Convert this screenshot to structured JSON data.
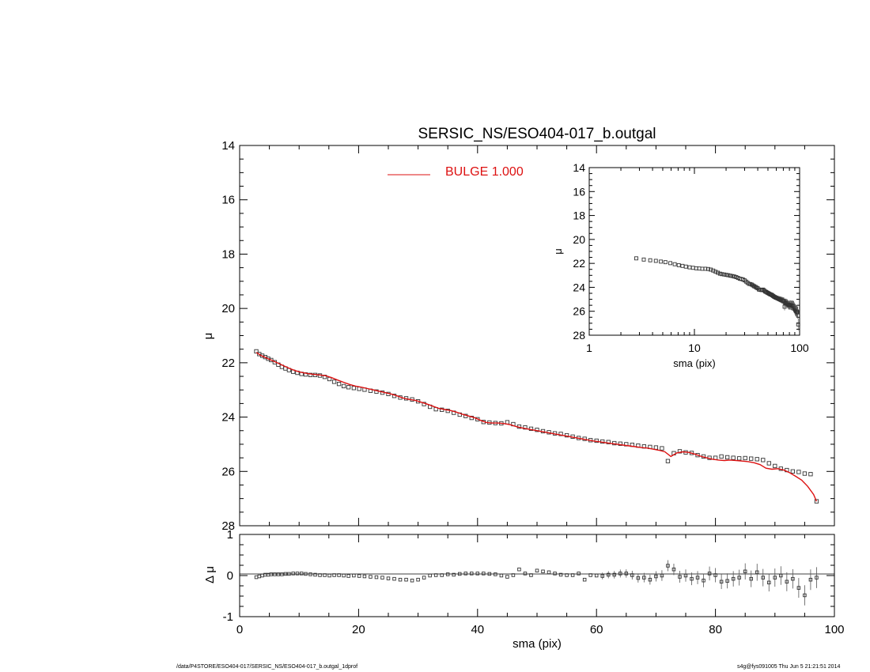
{
  "chart_data": [
    {
      "type": "scatter",
      "panel": "main",
      "title": "SERSIC_NS/ESO404-017_b.outgal",
      "xlabel": "",
      "ylabel": "μ",
      "xlim": [
        0,
        100
      ],
      "ylim": [
        28,
        14
      ],
      "y_inverted": true,
      "yticks": [
        "14",
        "16",
        "18",
        "20",
        "22",
        "24",
        "26",
        "28"
      ],
      "legend": {
        "position": "top-center",
        "label": "BULGE  1.000",
        "color": "#dd1111"
      },
      "series": [
        {
          "kind": "data-points",
          "marker": "open-square",
          "color": "#333333",
          "x": [
            2.8,
            3.3,
            3.8,
            4.3,
            4.8,
            5.3,
            5.9,
            6.5,
            7.1,
            7.7,
            8.3,
            9.0,
            9.7,
            10.4,
            11.1,
            11.9,
            12.7,
            13.5,
            14.3,
            15.1,
            15.9,
            16.7,
            17.5,
            18.3,
            19.2,
            20.1,
            21.0,
            22.0,
            23.0,
            24.0,
            25.0,
            26.0,
            27.0,
            28.0,
            29.0,
            30.0,
            31.0,
            32.0,
            33.0,
            34.0,
            35.0,
            36.0,
            37.0,
            38.0,
            39.0,
            40.0,
            41.0,
            42.0,
            43.0,
            44.0,
            45.0,
            46.0,
            47.0,
            48.0,
            49.0,
            50.0,
            51.0,
            52.0,
            53.0,
            54.0,
            55.0,
            56.0,
            57.0,
            58.0,
            59.0,
            60.0,
            61.0,
            62.0,
            63.0,
            64.0,
            65.0,
            66.0,
            67.0,
            68.0,
            69.0,
            70.0,
            71.0,
            72.0,
            73.0,
            74.0,
            75.0,
            76.0,
            77.0,
            78.0,
            79.0,
            80.0,
            81.0,
            82.0,
            83.0,
            84.0,
            85.0,
            86.0,
            87.0,
            88.0,
            89.0,
            90.0,
            91.0,
            92.0,
            93.0,
            94.0,
            95.0,
            96.0,
            97.0
          ],
          "y": [
            21.58,
            21.68,
            21.74,
            21.79,
            21.85,
            21.9,
            21.98,
            22.07,
            22.15,
            22.21,
            22.27,
            22.33,
            22.37,
            22.41,
            22.43,
            22.45,
            22.45,
            22.47,
            22.52,
            22.6,
            22.7,
            22.78,
            22.86,
            22.9,
            22.93,
            22.96,
            22.99,
            23.03,
            23.06,
            23.1,
            23.15,
            23.22,
            23.28,
            23.31,
            23.35,
            23.42,
            23.52,
            23.62,
            23.71,
            23.73,
            23.77,
            23.84,
            23.91,
            23.96,
            24.03,
            24.08,
            24.18,
            24.2,
            24.22,
            24.23,
            24.19,
            24.26,
            24.35,
            24.38,
            24.43,
            24.47,
            24.52,
            24.56,
            24.6,
            24.62,
            24.67,
            24.72,
            24.77,
            24.8,
            24.85,
            24.87,
            24.9,
            24.92,
            24.96,
            24.98,
            25.0,
            25.02,
            25.05,
            25.08,
            25.1,
            25.12,
            25.15,
            25.62,
            25.33,
            25.26,
            25.3,
            25.32,
            25.4,
            25.45,
            25.5,
            25.5,
            25.45,
            25.48,
            25.5,
            25.52,
            25.51,
            25.53,
            25.55,
            25.58,
            25.7,
            25.8,
            25.9,
            25.95,
            26.0,
            26.02,
            26.08,
            26.1,
            27.1
          ]
        },
        {
          "name": "BULGE  1.000",
          "kind": "model-line",
          "color": "#dd1111",
          "x": [
            2.8,
            3.5,
            4.5,
            5.5,
            6.5,
            7.5,
            8.5,
            9.5,
            10.5,
            11.5,
            12.5,
            13.5,
            14.5,
            15.5,
            16.5,
            17.5,
            18.5,
            19.5,
            20.5,
            21.5,
            22.5,
            23.5,
            24.5,
            25.5,
            26.5,
            27.5,
            28.5,
            29.5,
            30.5,
            31.5,
            32.5,
            33.5,
            34.5,
            35.5,
            36.5,
            37.5,
            38.5,
            39.5,
            40.5,
            41.5,
            42.5,
            43.5,
            44.5,
            45.5,
            46.5,
            47.5,
            48.5,
            49.5,
            50.5,
            51.5,
            52.5,
            53.5,
            54.5,
            55.5,
            56.5,
            57.5,
            58.5,
            59.5,
            60.5,
            61.5,
            62.5,
            63.5,
            64.5,
            65.5,
            66.5,
            67.5,
            68.5,
            69.5,
            70.5,
            71.5,
            72.5,
            73.5,
            74.5,
            75.5,
            76.5,
            77.5,
            78.5,
            79.5,
            80.5,
            81.5,
            82.5,
            83.5,
            84.5,
            85.5,
            86.5,
            87.5,
            88.5,
            89.5,
            90.5,
            91.5,
            92.5,
            93.5,
            94.5,
            95.5,
            96.5,
            97.0
          ],
          "y": [
            21.62,
            21.72,
            21.82,
            21.92,
            22.02,
            22.12,
            22.22,
            22.3,
            22.36,
            22.4,
            22.43,
            22.45,
            22.48,
            22.55,
            22.64,
            22.72,
            22.8,
            22.86,
            22.9,
            22.95,
            23.0,
            23.05,
            23.1,
            23.15,
            23.22,
            23.3,
            23.35,
            23.38,
            23.45,
            23.52,
            23.6,
            23.68,
            23.72,
            23.76,
            23.82,
            23.9,
            23.96,
            24.02,
            24.12,
            24.2,
            24.22,
            24.22,
            24.24,
            24.28,
            24.35,
            24.4,
            24.44,
            24.48,
            24.52,
            24.56,
            24.6,
            24.64,
            24.68,
            24.72,
            24.76,
            24.8,
            24.84,
            24.88,
            24.91,
            24.94,
            24.97,
            25.0,
            25.03,
            25.06,
            25.09,
            25.12,
            25.14,
            25.18,
            25.22,
            25.28,
            25.45,
            25.32,
            25.28,
            25.3,
            25.36,
            25.44,
            25.5,
            25.55,
            25.58,
            25.6,
            25.58,
            25.6,
            25.62,
            25.64,
            25.68,
            25.75,
            25.88,
            25.92,
            25.9,
            25.95,
            26.05,
            26.18,
            26.32,
            26.55,
            26.85,
            27.1
          ]
        }
      ]
    },
    {
      "type": "scatter",
      "panel": "residual",
      "xlabel": "sma (pix)",
      "ylabel": "Δ μ",
      "xlim": [
        0,
        100
      ],
      "ylim": [
        -1,
        1
      ],
      "xticks": [
        "0",
        "20",
        "40",
        "60",
        "80",
        "100"
      ],
      "yticks": [
        "1",
        "0",
        "-1"
      ],
      "zero_line": true,
      "series": [
        {
          "kind": "residual-points",
          "marker": "open-square",
          "color": "#333333",
          "x": [
            2.8,
            3.3,
            3.8,
            4.3,
            4.8,
            5.3,
            5.9,
            6.5,
            7.1,
            7.7,
            8.3,
            9.0,
            9.7,
            10.4,
            11.1,
            11.9,
            12.7,
            13.5,
            14.3,
            15.1,
            15.9,
            16.7,
            17.5,
            18.3,
            19.2,
            20.1,
            21.0,
            22.0,
            23.0,
            24.0,
            25.0,
            26.0,
            27.0,
            28.0,
            29.0,
            30.0,
            31.0,
            32.0,
            33.0,
            34.0,
            35.0,
            36.0,
            37.0,
            38.0,
            39.0,
            40.0,
            41.0,
            42.0,
            43.0,
            44.0,
            45.0,
            46.0,
            47.0,
            48.0,
            49.0,
            50.0,
            51.0,
            52.0,
            53.0,
            54.0,
            55.0,
            56.0,
            57.0,
            58.0,
            59.0,
            60.0,
            61.0,
            62.0,
            63.0,
            64.0,
            65.0,
            66.0,
            67.0,
            68.0,
            69.0,
            70.0,
            71.0,
            72.0,
            73.0,
            74.0,
            75.0,
            76.0,
            77.0,
            78.0,
            79.0,
            80.0,
            81.0,
            82.0,
            83.0,
            84.0,
            85.0,
            86.0,
            87.0,
            88.0,
            89.0,
            90.0,
            91.0,
            92.0,
            93.0,
            94.0,
            95.0,
            96.0,
            97.0
          ],
          "y": [
            -0.04,
            -0.02,
            0.0,
            0.02,
            0.02,
            0.03,
            0.03,
            0.03,
            0.03,
            0.04,
            0.04,
            0.05,
            0.05,
            0.05,
            0.04,
            0.03,
            0.02,
            0.01,
            0.01,
            0.0,
            0.01,
            0.01,
            0.0,
            -0.01,
            0.0,
            -0.01,
            -0.02,
            -0.03,
            -0.04,
            -0.05,
            -0.07,
            -0.08,
            -0.1,
            -0.1,
            -0.12,
            -0.1,
            -0.05,
            0.0,
            0.01,
            0.01,
            0.03,
            0.02,
            0.04,
            0.05,
            0.05,
            0.05,
            0.05,
            0.04,
            0.03,
            0.0,
            -0.03,
            0.01,
            0.15,
            0.05,
            0.01,
            0.12,
            0.1,
            0.08,
            0.05,
            0.02,
            0.01,
            0.01,
            0.05,
            -0.1,
            0.01,
            0.0,
            -0.01,
            0.02,
            0.02,
            0.05,
            0.05,
            0.01,
            -0.06,
            -0.05,
            -0.1,
            -0.02,
            0.0,
            0.24,
            0.15,
            -0.03,
            0.0,
            -0.08,
            -0.05,
            -0.12,
            0.05,
            0.01,
            -0.15,
            -0.13,
            -0.08,
            -0.05,
            0.1,
            -0.08,
            0.08,
            -0.05,
            -0.17,
            -0.05,
            0.0,
            -0.15,
            -0.08,
            -0.3,
            -0.48,
            -0.1,
            -0.05
          ]
        }
      ]
    },
    {
      "type": "scatter",
      "panel": "inset",
      "xlabel": "sma (pix)",
      "ylabel": "μ",
      "x_scale": "log",
      "xlim": [
        1,
        100
      ],
      "ylim": [
        28,
        14
      ],
      "y_inverted": true,
      "xticks": [
        "1",
        "10",
        "100"
      ],
      "yticks": [
        "14",
        "16",
        "18",
        "20",
        "22",
        "24",
        "26",
        "28"
      ],
      "series": [
        {
          "kind": "data-points",
          "marker": "open-square",
          "color": "#333333",
          "x": [
            2.8,
            3.3,
            3.8,
            4.3,
            4.8,
            5.3,
            5.9,
            6.5,
            7.1,
            7.7,
            8.3,
            9.0,
            9.7,
            10.4,
            11.1,
            11.9,
            12.7,
            13.5,
            14.3,
            15.1,
            15.9,
            16.7,
            17.5,
            18.3,
            19.2,
            20.1,
            21.0,
            22.0,
            23.0,
            24.0,
            25.0,
            26.0,
            27.0,
            28.0,
            29.0,
            30.0,
            31.0,
            32.0,
            33.0,
            34.0,
            35.0,
            36.0,
            37.0,
            38.0,
            39.0,
            40.0,
            41.0,
            42.0,
            43.0,
            44.0,
            45.0,
            46.0,
            47.0,
            48.0,
            49.0,
            50.0,
            51.0,
            52.0,
            53.0,
            54.0,
            55.0,
            56.0,
            57.0,
            58.0,
            59.0,
            60.0,
            61.0,
            62.0,
            63.0,
            64.0,
            65.0,
            66.0,
            67.0,
            68.0,
            69.0,
            70.0,
            71.0,
            72.0,
            73.0,
            74.0,
            75.0,
            76.0,
            77.0,
            78.0,
            79.0,
            80.0,
            81.0,
            82.0,
            83.0,
            84.0,
            85.0,
            86.0,
            87.0,
            88.0,
            89.0,
            90.0,
            91.0,
            92.0,
            93.0,
            94.0,
            95.0,
            96.0,
            97.0
          ],
          "y": [
            21.58,
            21.68,
            21.74,
            21.79,
            21.85,
            21.9,
            21.98,
            22.07,
            22.15,
            22.21,
            22.27,
            22.33,
            22.37,
            22.41,
            22.43,
            22.45,
            22.45,
            22.47,
            22.52,
            22.6,
            22.7,
            22.78,
            22.86,
            22.9,
            22.93,
            22.96,
            22.99,
            23.03,
            23.06,
            23.1,
            23.15,
            23.22,
            23.28,
            23.31,
            23.35,
            23.42,
            23.52,
            23.62,
            23.71,
            23.73,
            23.77,
            23.84,
            23.91,
            23.96,
            24.03,
            24.08,
            24.18,
            24.2,
            24.22,
            24.23,
            24.19,
            24.26,
            24.35,
            24.38,
            24.43,
            24.47,
            24.52,
            24.56,
            24.6,
            24.62,
            24.67,
            24.72,
            24.77,
            24.8,
            24.85,
            24.87,
            24.9,
            24.92,
            24.96,
            24.98,
            25.0,
            25.02,
            25.05,
            25.08,
            25.1,
            25.12,
            25.15,
            25.62,
            25.33,
            25.26,
            25.3,
            25.32,
            25.4,
            25.45,
            25.5,
            25.5,
            25.45,
            25.48,
            25.5,
            25.52,
            25.51,
            25.53,
            25.55,
            25.58,
            25.7,
            25.8,
            25.9,
            25.95,
            26.0,
            26.02,
            26.08,
            26.1,
            27.1
          ]
        }
      ]
    }
  ],
  "footer": {
    "path": "/data/P4STORE/ESO404-017/SERSIC_NS/ESO404-017_b.outgal_1dprof",
    "stamp": "s4g@fys091005  Thu Jun  5 21:21:51 2014"
  }
}
